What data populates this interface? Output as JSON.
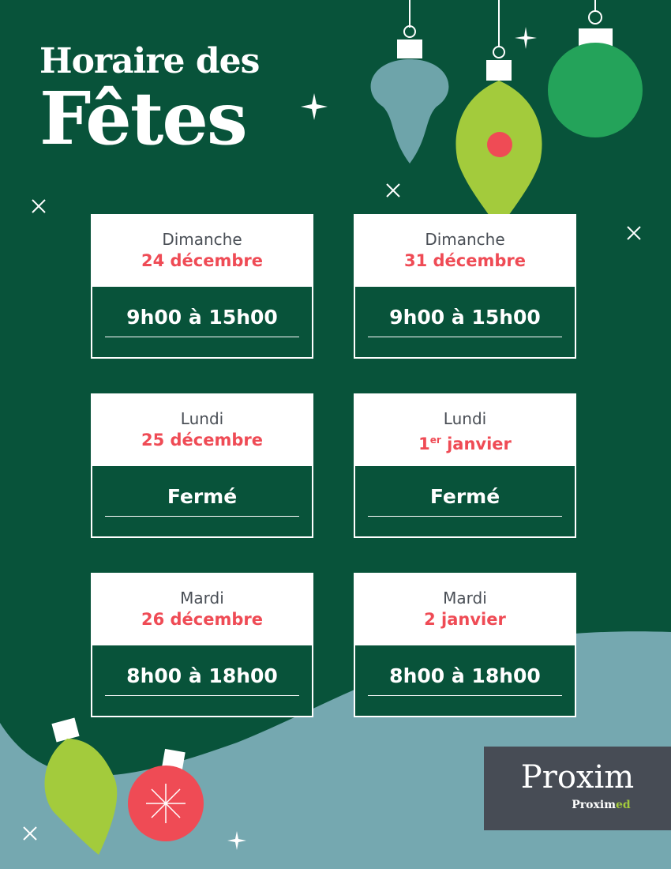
{
  "header": {
    "line1": "Horaire des",
    "line2": "Fêtes"
  },
  "colors": {
    "background": "#08533a",
    "wave": "#75a8b0",
    "accent_red": "#ef4b55",
    "lime": "#a3cb3c",
    "logo_bg": "#474c55"
  },
  "schedule": [
    {
      "day": "Dimanche",
      "date": "24 décembre",
      "hours": "9h00 à 15h00"
    },
    {
      "day": "Dimanche",
      "date": "31 décembre",
      "hours": "9h00 à 15h00"
    },
    {
      "day": "Lundi",
      "date": "25 décembre",
      "hours": "Fermé"
    },
    {
      "day": "Lundi",
      "date_num": "1",
      "date_sup": "er",
      "date_rest": " janvier",
      "hours": "Fermé"
    },
    {
      "day": "Mardi",
      "date": "26 décembre",
      "hours": "8h00 à 18h00"
    },
    {
      "day": "Mardi",
      "date": "2 janvier",
      "hours": "8h00 à 18h00"
    }
  ],
  "logo": {
    "name": "Proxim",
    "sub_a": "Prox",
    "sub_b": "im",
    "sub_c": "ed"
  }
}
